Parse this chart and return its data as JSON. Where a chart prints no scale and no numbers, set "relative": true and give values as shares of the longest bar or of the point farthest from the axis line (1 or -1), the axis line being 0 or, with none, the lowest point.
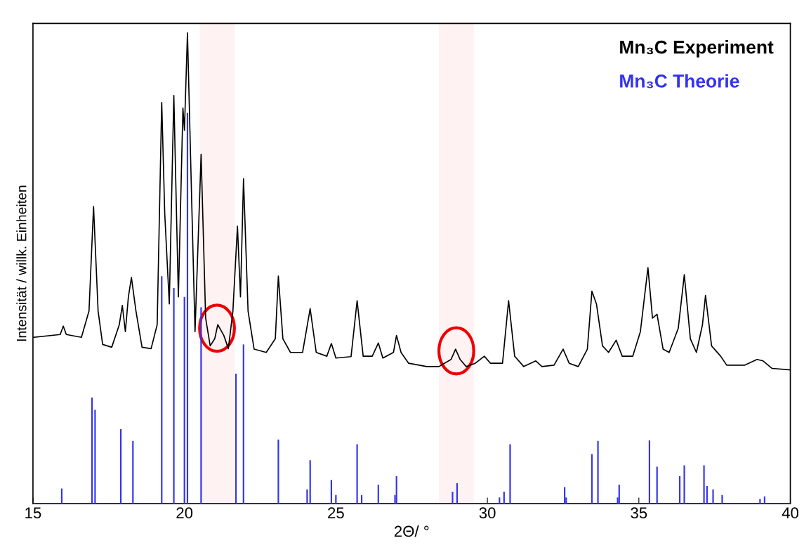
{
  "chart_data": {
    "type": "line",
    "relative": true,
    "xlabel": "2Θ/ °",
    "ylabel": "Intensität / willk. Einheiten",
    "xlim": [
      15,
      40
    ],
    "xticks": [
      15,
      20,
      25,
      30,
      35,
      40
    ],
    "legend": "top right",
    "grid": false,
    "bands": [
      {
        "axis": "x",
        "from": 20.5,
        "to": 21.65,
        "color": "#ee0000"
      },
      {
        "axis": "x",
        "from": 28.4,
        "to": 29.55,
        "color": "#ee0000"
      }
    ],
    "series": [
      {
        "name": "Mn₃C Experiment",
        "color": "#000000",
        "x": [
          15.0,
          15.9,
          16.0,
          16.1,
          16.6,
          16.85,
          17.0,
          17.15,
          17.3,
          17.6,
          17.85,
          17.95,
          18.05,
          18.15,
          18.25,
          18.4,
          18.6,
          18.9,
          19.1,
          19.25,
          19.35,
          19.5,
          19.65,
          19.8,
          19.95,
          20.0,
          20.1,
          20.25,
          20.35,
          20.55,
          20.7,
          20.85,
          21.0,
          21.1,
          21.3,
          21.45,
          21.6,
          21.75,
          21.85,
          21.95,
          22.1,
          22.3,
          22.7,
          23.0,
          23.1,
          23.25,
          23.5,
          23.9,
          24.15,
          24.35,
          24.7,
          24.85,
          25.0,
          25.5,
          25.7,
          25.9,
          26.2,
          26.4,
          26.55,
          26.9,
          27.0,
          27.15,
          27.4,
          28.0,
          28.4,
          28.8,
          28.95,
          29.1,
          29.3,
          29.6,
          29.9,
          30.1,
          30.5,
          30.7,
          30.9,
          31.2,
          31.6,
          31.8,
          32.2,
          32.5,
          32.7,
          33.0,
          33.3,
          33.45,
          33.6,
          33.8,
          34.0,
          34.25,
          34.45,
          34.8,
          35.05,
          35.3,
          35.45,
          35.6,
          35.8,
          36.0,
          36.3,
          36.5,
          36.7,
          36.9,
          37.1,
          37.2,
          37.4,
          37.7,
          37.9,
          38.5,
          38.9,
          39.1,
          39.4,
          40.0
        ],
        "values": [
          0.353,
          0.359,
          0.377,
          0.359,
          0.353,
          0.409,
          0.631,
          0.409,
          0.338,
          0.332,
          0.38,
          0.421,
          0.365,
          0.439,
          0.48,
          0.409,
          0.332,
          0.329,
          0.38,
          0.852,
          0.616,
          0.424,
          0.867,
          0.439,
          0.84,
          0.793,
          1.0,
          0.616,
          0.365,
          0.742,
          0.394,
          0.335,
          0.35,
          0.38,
          0.357,
          0.329,
          0.409,
          0.589,
          0.439,
          0.69,
          0.409,
          0.328,
          0.321,
          0.35,
          0.483,
          0.35,
          0.321,
          0.321,
          0.414,
          0.321,
          0.313,
          0.34,
          0.309,
          0.312,
          0.431,
          0.313,
          0.313,
          0.341,
          0.309,
          0.321,
          0.357,
          0.321,
          0.298,
          0.291,
          0.291,
          0.306,
          0.328,
          0.306,
          0.291,
          0.298,
          0.313,
          0.298,
          0.298,
          0.431,
          0.313,
          0.291,
          0.303,
          0.291,
          0.294,
          0.328,
          0.298,
          0.291,
          0.328,
          0.451,
          0.424,
          0.335,
          0.321,
          0.347,
          0.313,
          0.313,
          0.365,
          0.501,
          0.394,
          0.402,
          0.328,
          0.321,
          0.372,
          0.486,
          0.35,
          0.321,
          0.38,
          0.442,
          0.335,
          0.313,
          0.294,
          0.294,
          0.306,
          0.303,
          0.287,
          0.284
        ]
      },
      {
        "name": "Mn₃C Theorie",
        "type": "bar",
        "color": "#3333ee",
        "x": [
          15.95,
          16.95,
          17.05,
          17.9,
          18.3,
          19.25,
          19.65,
          20.0,
          20.1,
          20.55,
          21.7,
          21.95,
          23.1,
          24.05,
          24.15,
          24.85,
          25.0,
          25.7,
          25.85,
          26.4,
          26.95,
          27.0,
          28.85,
          29.0,
          30.4,
          30.55,
          30.75,
          32.55,
          32.6,
          33.45,
          33.65,
          34.3,
          34.35,
          35.35,
          35.6,
          36.35,
          36.5,
          37.15,
          37.25,
          37.45,
          37.75,
          39.0,
          39.15
        ],
        "values": [
          0.032,
          0.225,
          0.199,
          0.158,
          0.133,
          0.483,
          0.458,
          0.439,
          0.83,
          0.417,
          0.276,
          0.338,
          0.136,
          0.03,
          0.092,
          0.05,
          0.018,
          0.126,
          0.018,
          0.04,
          0.018,
          0.058,
          0.025,
          0.043,
          0.013,
          0.025,
          0.126,
          0.035,
          0.013,
          0.105,
          0.133,
          0.013,
          0.04,
          0.134,
          0.078,
          0.058,
          0.081,
          0.081,
          0.037,
          0.03,
          0.018,
          0.01,
          0.015
        ]
      }
    ]
  }
}
